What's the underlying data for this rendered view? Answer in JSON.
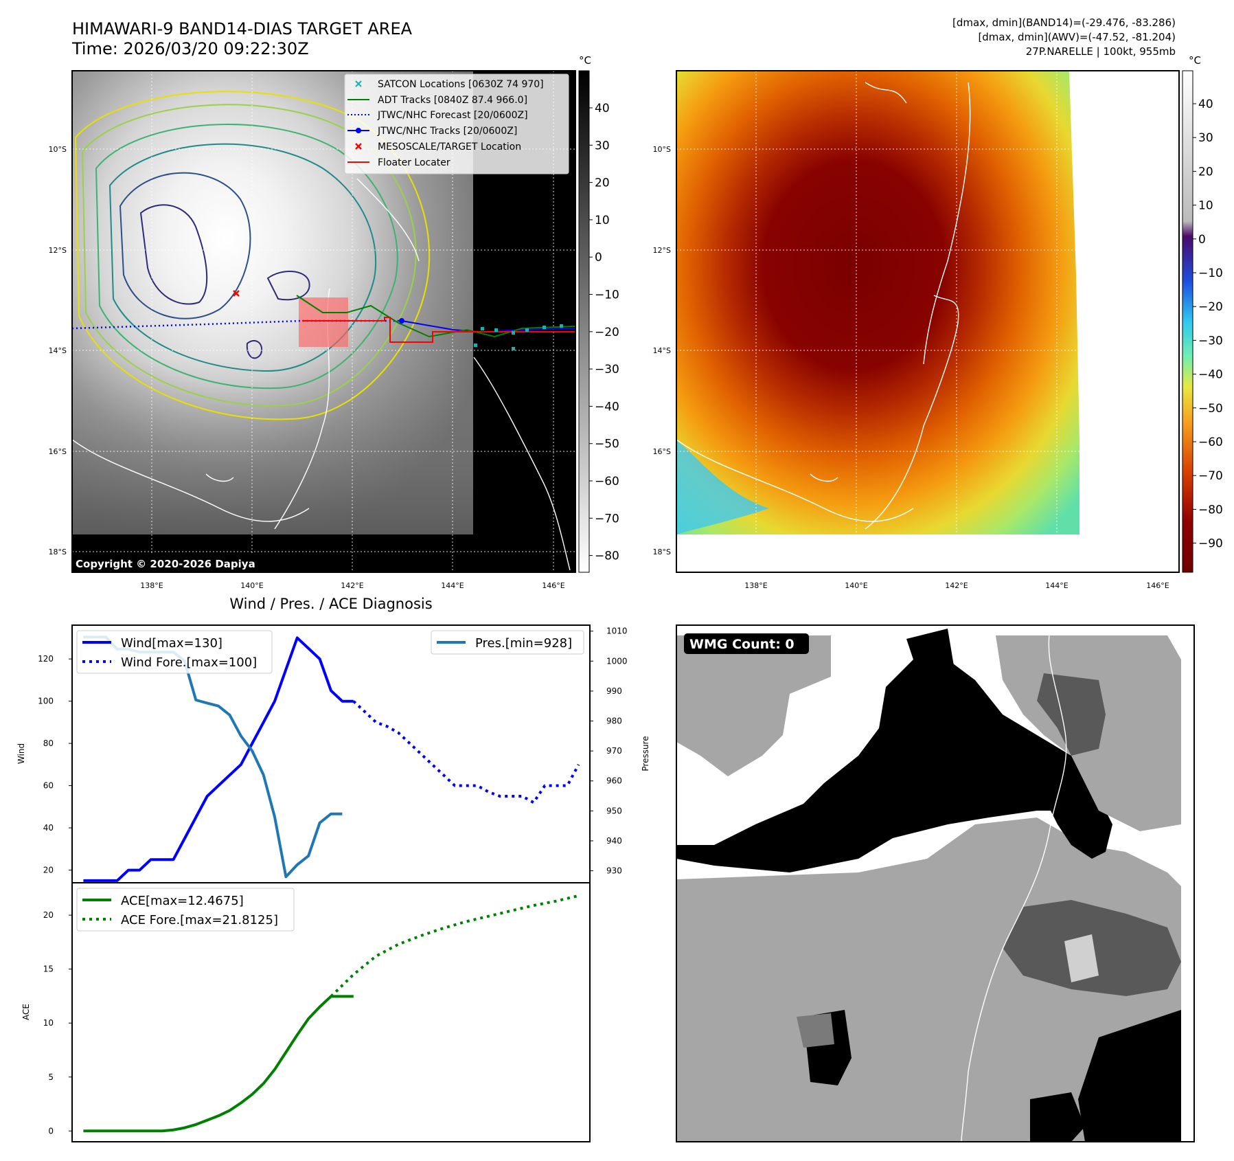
{
  "header": {
    "title_line1": "HIMAWARI-9 BAND14-DIAS TARGET AREA",
    "title_line2": "Time: 2026/03/20 09:22:30Z",
    "info_line1": "[dmax, dmin](BAND14)=(-29.476, -83.286)",
    "info_line2": "[dmax, dmin](AWV)=(-47.52, -81.204)",
    "info_line3": "27P.NARELLE | 100kt, 955mb"
  },
  "map_axes": {
    "lat_labels": [
      "10°S",
      "12°S",
      "14°S",
      "16°S",
      "18°S"
    ],
    "lon_labels": [
      "138°E",
      "140°E",
      "142°E",
      "144°E",
      "146°E"
    ]
  },
  "colorbar_left": {
    "unit": "°C",
    "ticks": [
      "40",
      "30",
      "20",
      "10",
      "0",
      "−10",
      "−20",
      "−30",
      "−40",
      "−50",
      "−60",
      "−70",
      "−80"
    ]
  },
  "colorbar_right": {
    "unit": "°C",
    "ticks": [
      "40",
      "30",
      "20",
      "10",
      "0",
      "−10",
      "−20",
      "−30",
      "−40",
      "−50",
      "−60",
      "−70",
      "−80",
      "−90"
    ]
  },
  "legend_map": {
    "items": [
      {
        "label": "SATCON Locations [0630Z 74 970]",
        "color": "#19b0b0"
      },
      {
        "label": "ADT Tracks [0840Z 87.4 966.0]",
        "color": "#008000"
      },
      {
        "label": "JTWC/NHC Forecast [20/0600Z]",
        "color": "#0000ff"
      },
      {
        "label": "JTWC/NHC Tracks [20/0600Z]",
        "color": "#0000ff"
      },
      {
        "label": "MESOSCALE/TARGET Location",
        "color": "#ff0000"
      },
      {
        "label": "Floater Locater",
        "color": "#ff0000"
      }
    ]
  },
  "copyright": "Copyright © 2020-2026 Dapiya",
  "wmg_label": "WMG Count: 0",
  "chart_data": [
    {
      "type": "line",
      "title": "Wind / Pres. / ACE Diagnosis",
      "ylabel": "Wind",
      "y2label": "Pressure",
      "ylim": [
        14,
        136
      ],
      "y2lim": [
        926,
        1012
      ],
      "yticks": [
        20,
        40,
        60,
        80,
        100,
        120
      ],
      "y2ticks": [
        930,
        940,
        950,
        960,
        970,
        980,
        990,
        1000,
        1010
      ],
      "legend_left": [
        "Wind[max=130]",
        "Wind Fore.[max=100]"
      ],
      "legend_right": [
        "Pres.[min=928]"
      ],
      "xlim": [
        -1,
        45
      ],
      "series": [
        {
          "name": "Wind[max=130]",
          "color": "#0000ff",
          "style": "solid",
          "x": [
            0,
            1,
            2,
            3,
            4,
            5,
            6,
            7,
            8,
            9,
            10,
            11,
            12,
            13,
            14,
            15,
            16,
            17,
            18,
            19,
            20,
            21,
            22,
            23,
            24
          ],
          "values": [
            15,
            15,
            15,
            15,
            20,
            20,
            25,
            25,
            25,
            35,
            45,
            55,
            60,
            65,
            70,
            80,
            90,
            100,
            115,
            130,
            125,
            120,
            105,
            100,
            100
          ]
        },
        {
          "name": "Wind Fore.[max=100]",
          "color": "#0000ff",
          "style": "dotted",
          "x": [
            24,
            25,
            26,
            27,
            28,
            29,
            30,
            31,
            32,
            33,
            34,
            35,
            36,
            37,
            38,
            39,
            40,
            41,
            42,
            43,
            44
          ],
          "values": [
            100,
            95,
            90,
            88,
            85,
            80,
            75,
            70,
            65,
            60,
            60,
            60,
            57,
            55,
            55,
            55,
            52,
            60,
            60,
            60,
            70
          ]
        },
        {
          "name": "Pres.[min=928]",
          "color": "#1f77b4",
          "style": "solid",
          "axis": "right",
          "x": [
            0,
            1,
            2,
            3,
            4,
            5,
            6,
            7,
            8,
            9,
            10,
            11,
            12,
            13,
            14,
            15,
            16,
            17,
            18,
            19,
            20,
            21,
            22,
            23
          ],
          "values": [
            1008,
            1008,
            1008,
            1004,
            1004,
            1003,
            1003,
            1003,
            1003,
            1000,
            987,
            986,
            985,
            982,
            975,
            970,
            962,
            948,
            928,
            932,
            935,
            946,
            949,
            949
          ]
        }
      ]
    },
    {
      "type": "line",
      "ylabel": "ACE",
      "ylim": [
        -1,
        23
      ],
      "yticks": [
        0,
        5,
        10,
        15,
        20
      ],
      "xlim": [
        -1,
        45
      ],
      "legend": [
        "ACE[max=12.4675]",
        "ACE Fore.[max=21.8125]"
      ],
      "series": [
        {
          "name": "ACE[max=12.4675]",
          "color": "#008000",
          "style": "solid",
          "x": [
            0,
            1,
            2,
            3,
            4,
            5,
            6,
            7,
            8,
            9,
            10,
            11,
            12,
            13,
            14,
            15,
            16,
            17,
            18,
            19,
            20,
            21,
            22,
            23,
            24
          ],
          "values": [
            0,
            0,
            0,
            0,
            0,
            0,
            0,
            0,
            0.1,
            0.3,
            0.6,
            1.0,
            1.4,
            1.9,
            2.6,
            3.4,
            4.4,
            5.7,
            7.3,
            8.9,
            10.4,
            11.5,
            12.47,
            12.47,
            12.47
          ]
        },
        {
          "name": "ACE Fore.[max=21.8125]",
          "color": "#008000",
          "style": "dotted",
          "x": [
            22,
            24,
            26,
            28,
            30,
            32,
            34,
            36,
            38,
            40,
            42,
            44
          ],
          "values": [
            12.47,
            14.5,
            16.2,
            17.3,
            18.1,
            18.8,
            19.4,
            19.9,
            20.4,
            20.9,
            21.3,
            21.8
          ]
        }
      ]
    }
  ]
}
